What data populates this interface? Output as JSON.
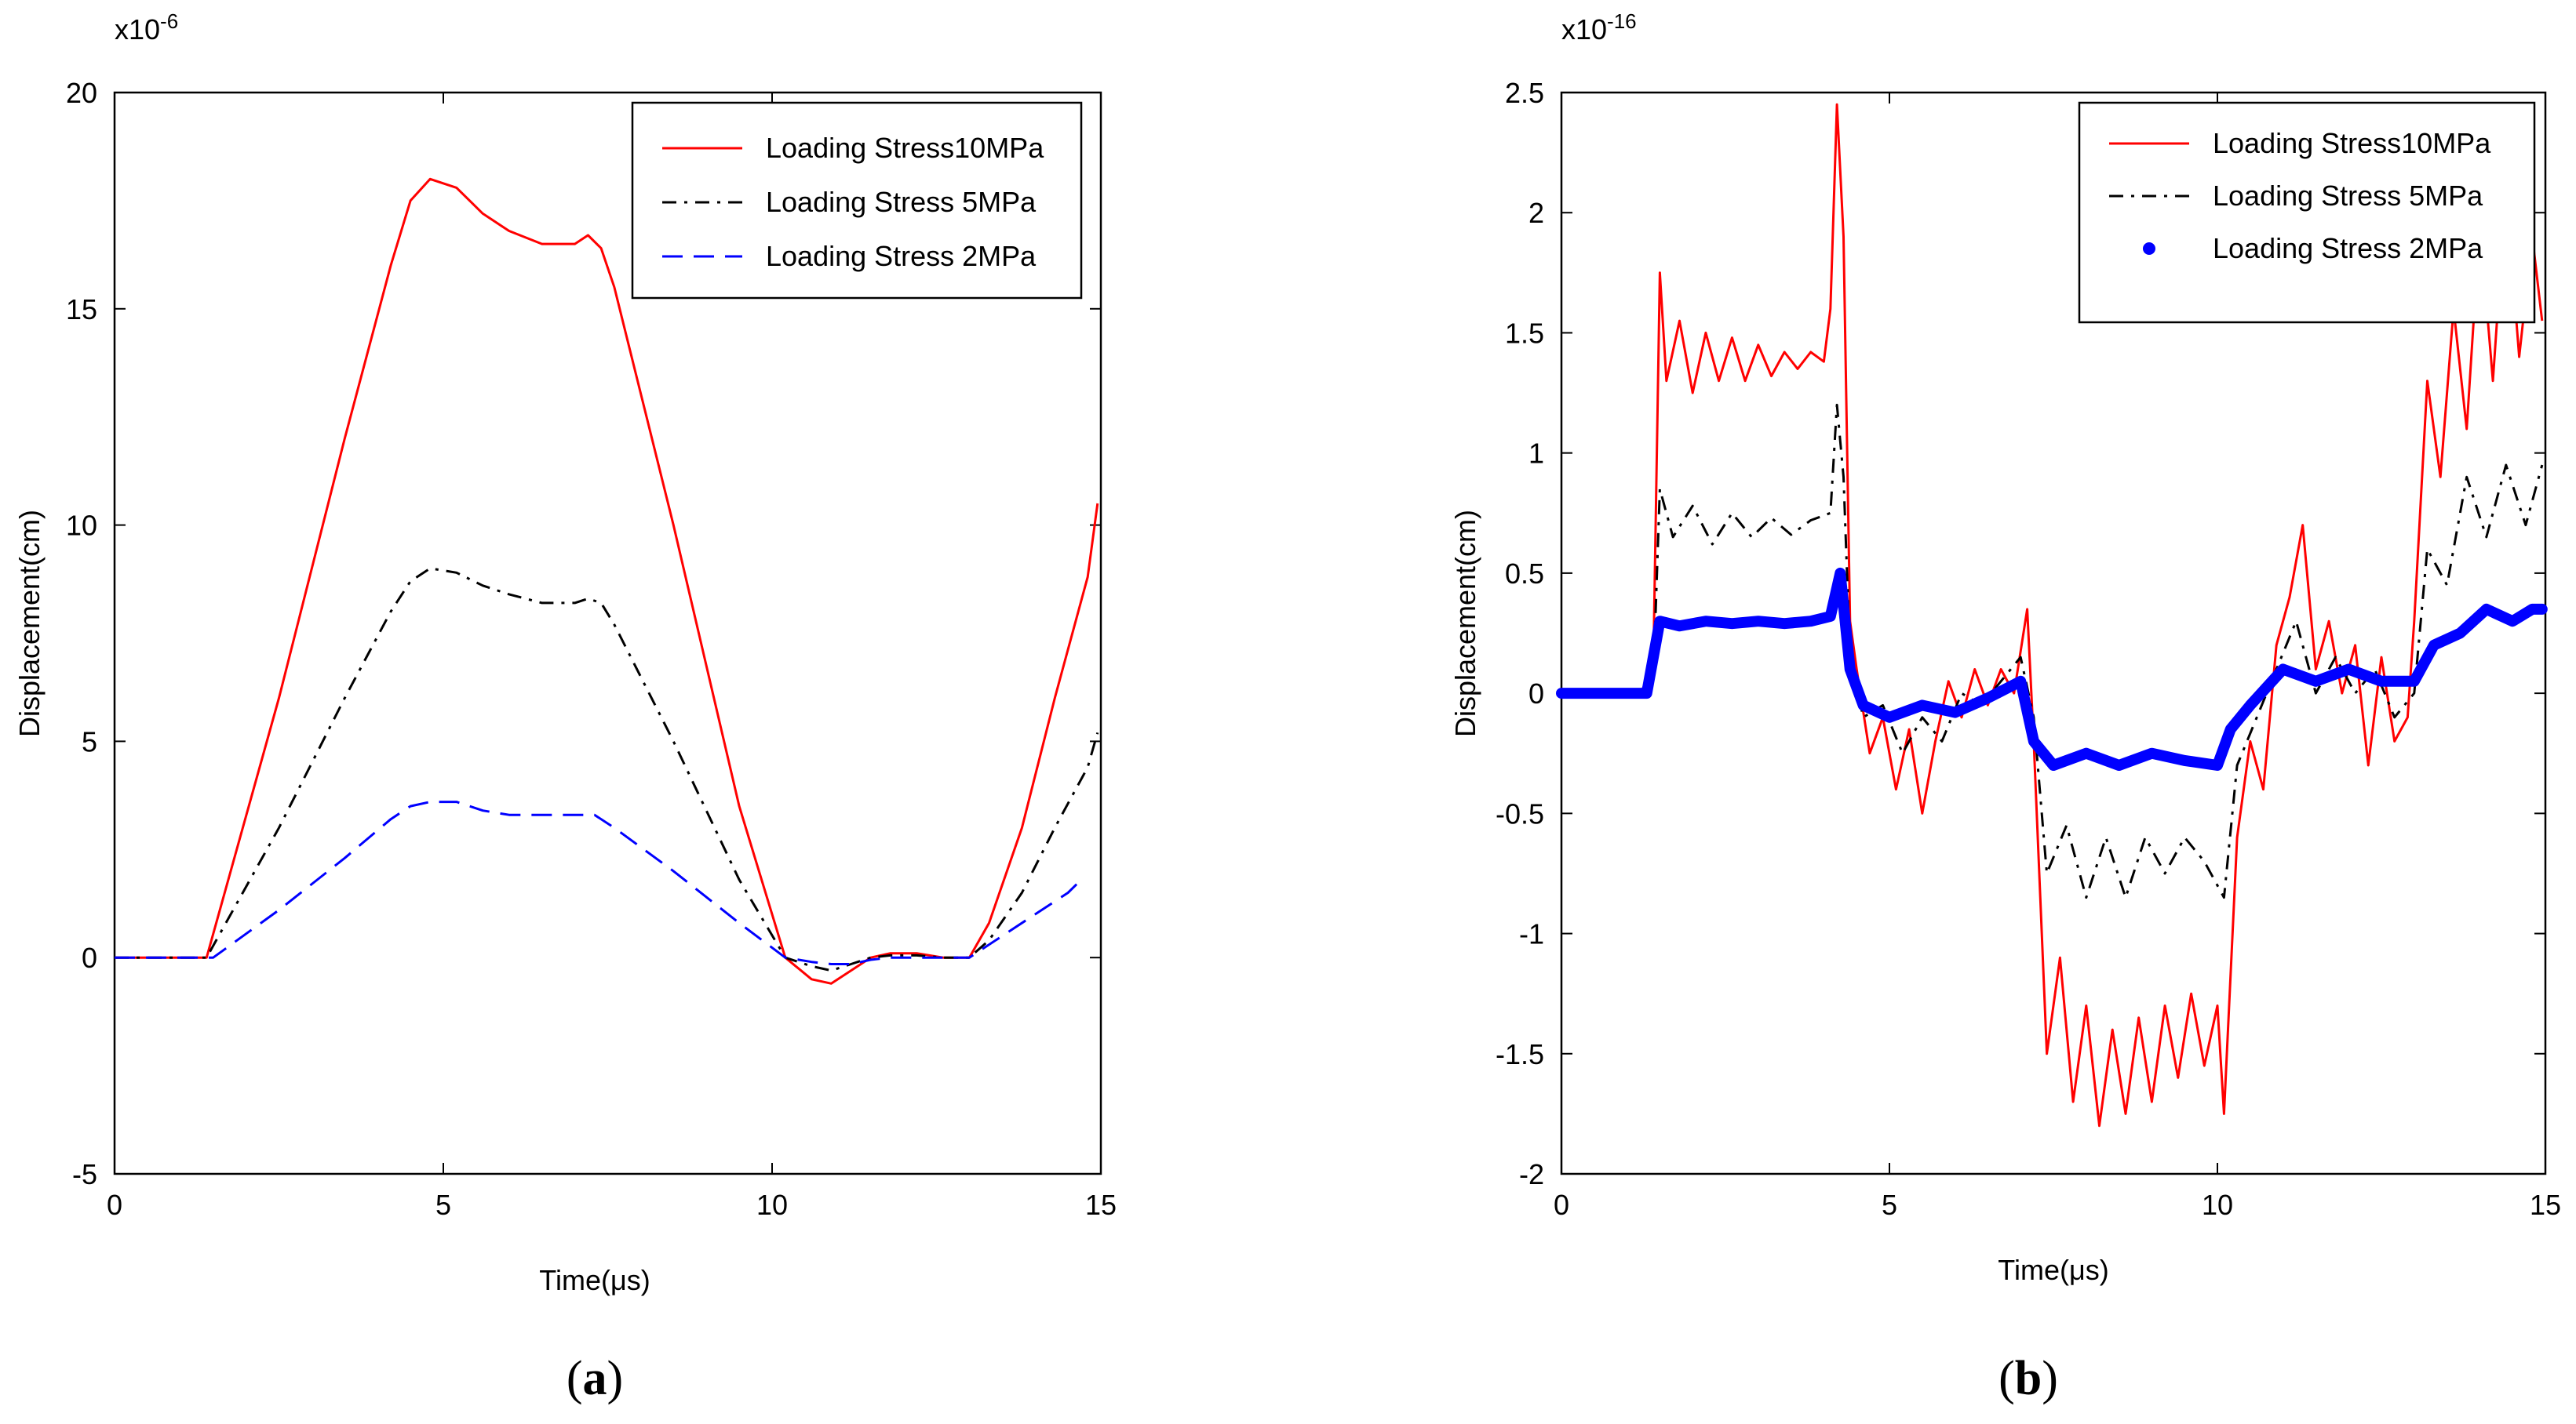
{
  "chart_data": [
    {
      "type": "line",
      "panel_label_open": "(",
      "panel_label_letter": "a",
      "panel_label_close": ")",
      "xlabel": "Time(μs)",
      "ylabel": "Displacement(cm)",
      "y_exponent": "x10",
      "y_exponent_power": "-6",
      "xlim": [
        0,
        15
      ],
      "ylim": [
        -5,
        20
      ],
      "xticks": [
        0,
        5,
        10,
        15
      ],
      "yticks": [
        -5,
        0,
        5,
        10,
        15,
        20
      ],
      "series": [
        {
          "name": "Loading Stress10MPa",
          "color": "#ff0000",
          "style": "solid",
          "x": [
            0,
            1.4,
            2.5,
            3.5,
            4.2,
            4.5,
            4.8,
            5.2,
            5.6,
            6.0,
            6.5,
            7.0,
            7.2,
            7.4,
            7.6,
            8.5,
            9.5,
            10.2,
            10.6,
            10.9,
            11.2,
            11.5,
            11.8,
            12.2,
            12.6,
            13.0,
            13.3,
            13.8,
            14.3,
            14.8,
            14.95
          ],
          "y": [
            0,
            0,
            6,
            12,
            16,
            17.5,
            18,
            17.8,
            17.2,
            16.8,
            16.5,
            16.5,
            16.7,
            16.4,
            15.5,
            10,
            3.5,
            0,
            -0.5,
            -0.6,
            -0.3,
            0,
            0.1,
            0.1,
            0,
            0,
            0.8,
            3,
            6,
            8.8,
            10.5
          ]
        },
        {
          "name": "Loading Stress 5MPa",
          "color": "#000000",
          "style": "dashdot",
          "x": [
            0,
            1.4,
            2.5,
            3.5,
            4.2,
            4.5,
            4.8,
            5.2,
            5.6,
            6.0,
            6.5,
            7.0,
            7.2,
            7.4,
            7.6,
            8.5,
            9.5,
            10.2,
            10.6,
            10.9,
            11.2,
            11.5,
            11.8,
            12.2,
            12.6,
            13.0,
            13.3,
            13.8,
            14.3,
            14.8,
            14.95
          ],
          "y": [
            0,
            0,
            3,
            6,
            8,
            8.7,
            9,
            8.9,
            8.6,
            8.4,
            8.2,
            8.2,
            8.3,
            8.2,
            7.7,
            5,
            1.8,
            0,
            -0.2,
            -0.3,
            -0.15,
            0,
            0.05,
            0.05,
            0,
            0,
            0.4,
            1.5,
            3,
            4.4,
            5.2
          ]
        },
        {
          "name": "Loading Stress 2MPa",
          "color": "#0000ff",
          "style": "dashed",
          "x": [
            0,
            1.5,
            2.5,
            3.5,
            4.2,
            4.5,
            4.8,
            5.2,
            5.6,
            6.0,
            6.5,
            7.0,
            7.3,
            7.6,
            8.5,
            9.5,
            10.2,
            10.6,
            10.9,
            11.2,
            11.5,
            11.8,
            12.2,
            12.6,
            13.0,
            13.5,
            14.0,
            14.5,
            14.7
          ],
          "y": [
            0,
            0,
            1.1,
            2.3,
            3.2,
            3.5,
            3.6,
            3.6,
            3.4,
            3.3,
            3.3,
            3.3,
            3.3,
            3.0,
            2.0,
            0.8,
            0,
            -0.1,
            -0.15,
            -0.15,
            -0.05,
            0,
            0,
            0,
            0,
            0.5,
            1.0,
            1.5,
            1.8
          ]
        }
      ]
    },
    {
      "type": "line",
      "panel_label_open": "(",
      "panel_label_letter": "b",
      "panel_label_close": ")",
      "xlabel": "Time(μs)",
      "ylabel": "Displacement(cm)",
      "y_exponent": "x10",
      "y_exponent_power": "-16",
      "xlim": [
        0,
        15
      ],
      "ylim": [
        -2,
        2.5
      ],
      "xticks": [
        0,
        5,
        10,
        15
      ],
      "yticks": [
        -2,
        -1.5,
        -1,
        -0.5,
        0,
        0.5,
        1,
        1.5,
        2,
        2.5
      ],
      "series": [
        {
          "name": "Loading Stress10MPa",
          "color": "#ff0000",
          "style": "solid",
          "x": [
            0,
            1.2,
            1.4,
            1.5,
            1.6,
            1.8,
            2.0,
            2.2,
            2.4,
            2.6,
            2.8,
            3.0,
            3.2,
            3.4,
            3.6,
            3.8,
            4.0,
            4.1,
            4.2,
            4.3,
            4.4,
            4.5,
            4.7,
            4.9,
            5.1,
            5.3,
            5.5,
            5.7,
            5.9,
            6.1,
            6.3,
            6.5,
            6.7,
            6.9,
            7.1,
            7.2,
            7.4,
            7.6,
            7.8,
            8.0,
            8.2,
            8.4,
            8.6,
            8.8,
            9.0,
            9.2,
            9.4,
            9.6,
            9.8,
            10.0,
            10.1,
            10.3,
            10.5,
            10.7,
            10.9,
            11.1,
            11.3,
            11.5,
            11.7,
            11.9,
            12.1,
            12.3,
            12.5,
            12.7,
            12.9,
            13.0,
            13.2,
            13.4,
            13.6,
            13.8,
            14.0,
            14.2,
            14.4,
            14.6,
            14.8,
            14.95
          ],
          "y": [
            0,
            0,
            0.1,
            1.75,
            1.3,
            1.55,
            1.25,
            1.5,
            1.3,
            1.48,
            1.3,
            1.45,
            1.32,
            1.42,
            1.35,
            1.42,
            1.38,
            1.6,
            2.45,
            1.9,
            0.3,
            0.1,
            -0.25,
            -0.1,
            -0.4,
            -0.15,
            -0.5,
            -0.2,
            0.05,
            -0.1,
            0.1,
            -0.05,
            0.1,
            0,
            0.35,
            -0.2,
            -1.5,
            -1.1,
            -1.7,
            -1.3,
            -1.8,
            -1.4,
            -1.75,
            -1.35,
            -1.7,
            -1.3,
            -1.6,
            -1.25,
            -1.55,
            -1.3,
            -1.75,
            -0.6,
            -0.2,
            -0.4,
            0.2,
            0.4,
            0.7,
            0.1,
            0.3,
            0,
            0.2,
            -0.3,
            0.15,
            -0.2,
            -0.1,
            0.3,
            1.3,
            0.9,
            1.6,
            1.1,
            1.95,
            1.3,
            2.1,
            1.4,
            1.9,
            1.55
          ]
        },
        {
          "name": "Loading Stress 5MPa",
          "color": "#000000",
          "style": "dashdot",
          "x": [
            0,
            1.2,
            1.4,
            1.5,
            1.7,
            2.0,
            2.3,
            2.6,
            2.9,
            3.2,
            3.5,
            3.8,
            4.1,
            4.2,
            4.3,
            4.4,
            4.6,
            4.9,
            5.2,
            5.5,
            5.8,
            6.1,
            6.4,
            6.7,
            7.0,
            7.2,
            7.4,
            7.7,
            8.0,
            8.3,
            8.6,
            8.9,
            9.2,
            9.5,
            9.8,
            10.1,
            10.3,
            10.6,
            10.9,
            11.2,
            11.5,
            11.8,
            12.1,
            12.4,
            12.7,
            13.0,
            13.2,
            13.5,
            13.8,
            14.1,
            14.4,
            14.7,
            14.95
          ],
          "y": [
            0,
            0,
            0.05,
            0.85,
            0.65,
            0.78,
            0.62,
            0.75,
            0.65,
            0.73,
            0.66,
            0.72,
            0.75,
            1.2,
            0.9,
            0.15,
            -0.1,
            -0.05,
            -0.25,
            -0.1,
            -0.2,
            0,
            -0.05,
            0.05,
            0.15,
            -0.1,
            -0.75,
            -0.55,
            -0.85,
            -0.6,
            -0.85,
            -0.6,
            -0.75,
            -0.6,
            -0.7,
            -0.85,
            -0.3,
            -0.1,
            0.1,
            0.3,
            0,
            0.15,
            0,
            0.1,
            -0.1,
            0,
            0.6,
            0.45,
            0.9,
            0.65,
            0.95,
            0.7,
            0.95
          ]
        },
        {
          "name": "Loading Stress 2MPa",
          "color": "#0000ff",
          "style": "dots",
          "x": [
            0,
            1.3,
            1.5,
            1.8,
            2.2,
            2.6,
            3.0,
            3.4,
            3.8,
            4.1,
            4.25,
            4.4,
            4.6,
            5.0,
            5.5,
            6.0,
            6.5,
            7.0,
            7.2,
            7.5,
            8.0,
            8.5,
            9.0,
            9.5,
            10.0,
            10.2,
            10.5,
            11.0,
            11.5,
            12.0,
            12.5,
            13.0,
            13.3,
            13.7,
            14.1,
            14.5,
            14.8,
            14.95
          ],
          "y": [
            0,
            0,
            0.3,
            0.28,
            0.3,
            0.29,
            0.3,
            0.29,
            0.3,
            0.32,
            0.5,
            0.1,
            -0.05,
            -0.1,
            -0.05,
            -0.08,
            -0.02,
            0.05,
            -0.2,
            -0.3,
            -0.25,
            -0.3,
            -0.25,
            -0.28,
            -0.3,
            -0.15,
            -0.05,
            0.1,
            0.05,
            0.1,
            0.05,
            0.05,
            0.2,
            0.25,
            0.35,
            0.3,
            0.35,
            0.35
          ]
        }
      ]
    }
  ]
}
